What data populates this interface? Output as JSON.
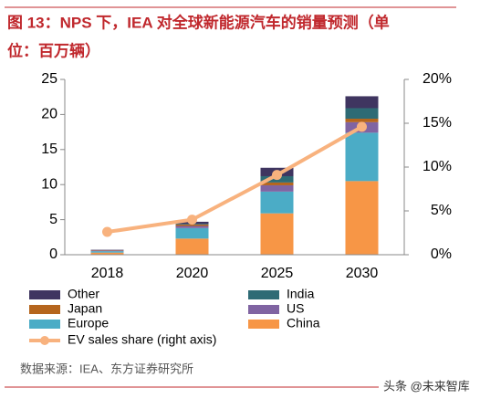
{
  "title_line1": "图 13：NPS 下，IEA 对全球新能源汽车的销量预测（单",
  "title_line2": "位：百万辆）",
  "source": "数据来源：IEA、东方证券研究所",
  "watermark": "头条 @未来智库",
  "chart_data": {
    "type": "stacked-bar-line",
    "categories": [
      "2018",
      "2020",
      "2025",
      "2030"
    ],
    "series": [
      {
        "name": "China",
        "color": "#f79646",
        "values": [
          0.3,
          2.3,
          5.9,
          10.5
        ]
      },
      {
        "name": "Europe",
        "color": "#4bacc6",
        "values": [
          0.2,
          1.5,
          3.1,
          6.9
        ]
      },
      {
        "name": "US",
        "color": "#8064a2",
        "values": [
          0.1,
          0.3,
          0.9,
          1.5
        ]
      },
      {
        "name": "Japan",
        "color": "#b5651d",
        "values": [
          0.05,
          0.2,
          0.4,
          0.5
        ]
      },
      {
        "name": "India",
        "color": "#2e6b75",
        "values": [
          0.0,
          0.1,
          0.9,
          1.5
        ]
      },
      {
        "name": "Other",
        "color": "#3f3560",
        "values": [
          0.05,
          0.3,
          1.2,
          1.7
        ]
      },
      {
        "name": "EV sales share (right axis)",
        "color": "#f8b27e",
        "axis": "y2",
        "values": [
          2.6,
          4.0,
          9.1,
          14.6
        ]
      }
    ],
    "ylim": [
      0,
      25
    ],
    "yticks": [
      0,
      5,
      10,
      15,
      20,
      25
    ],
    "y2lim": [
      0,
      20
    ],
    "y2ticks": [
      {
        "value": 0,
        "label": "0%"
      },
      {
        "value": 5,
        "label": "5%"
      },
      {
        "value": 10,
        "label": "10%"
      },
      {
        "value": 15,
        "label": "15%"
      },
      {
        "value": 20,
        "label": "20%"
      }
    ]
  }
}
